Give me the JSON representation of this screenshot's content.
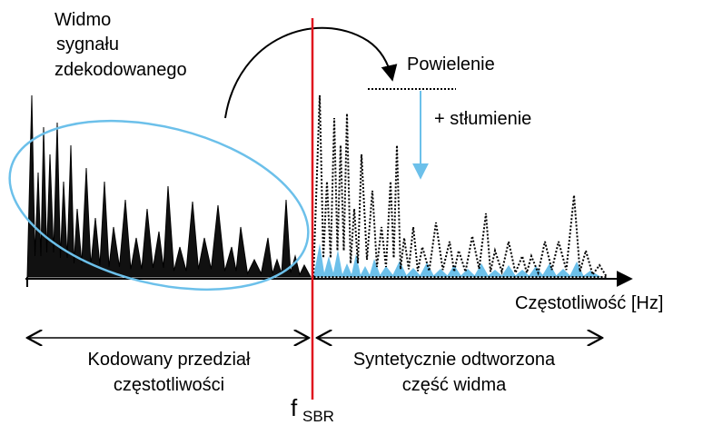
{
  "spectrum_label": [
    "Widmo",
    "sygnału",
    "zdekodowanego"
  ],
  "replication_label": "Powielenie",
  "attenuation_label": "+ stłumienie",
  "axis_label": "Częstotliwość [Hz]",
  "coded_range_label": [
    "Kodowany przedział",
    "częstotliwości"
  ],
  "synthetic_range_label": [
    "Syntetycznie odtworzona",
    "część widma"
  ],
  "crossover_label": {
    "symbol": "f",
    "subscript": "SBR"
  }
}
